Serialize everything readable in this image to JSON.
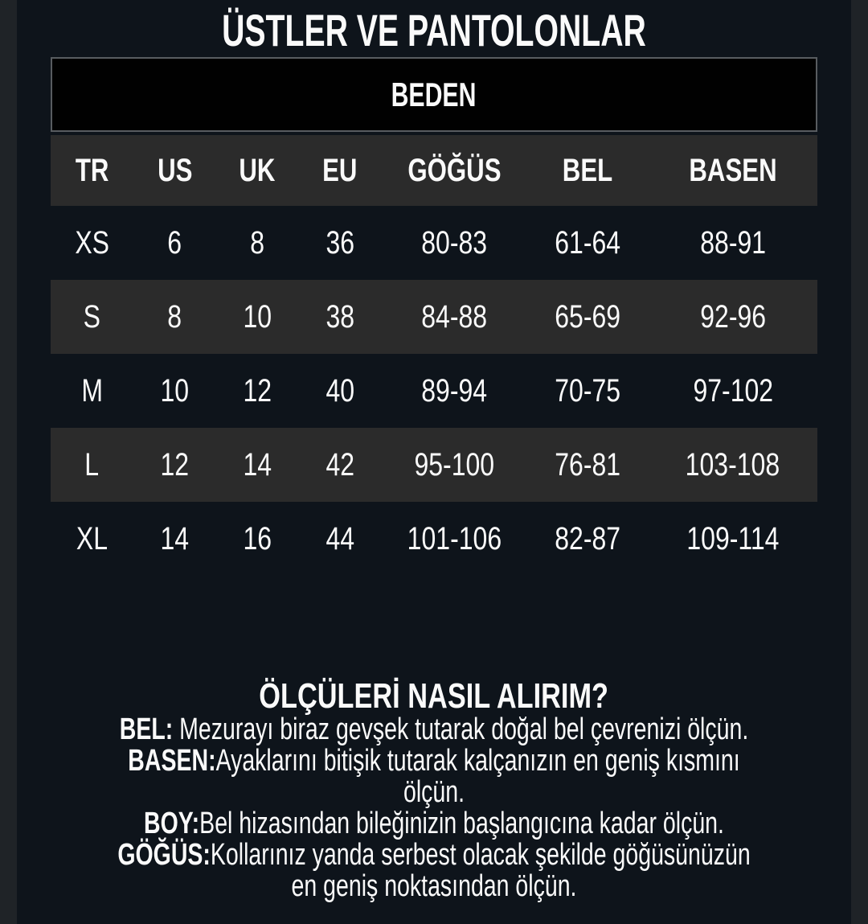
{
  "title": "ÜSTLER VE PANTOLONLAR",
  "table": {
    "caption": "BEDEN",
    "columns": [
      "TR",
      "US",
      "UK",
      "EU",
      "GÖĞÜS",
      "BEL",
      "BASEN"
    ],
    "rows": [
      [
        "XS",
        "6",
        "8",
        "36",
        "80-83",
        "61-64",
        "88-91"
      ],
      [
        "S",
        "8",
        "10",
        "38",
        "84-88",
        "65-69",
        "92-96"
      ],
      [
        "M",
        "10",
        "12",
        "40",
        "89-94",
        "70-75",
        "97-102"
      ],
      [
        "L",
        "12",
        "14",
        "42",
        "95-100",
        "76-81",
        "103-108"
      ],
      [
        "XL",
        "14",
        "16",
        "44",
        "101-106",
        "82-87",
        "109-114"
      ]
    ]
  },
  "instructions": {
    "heading": "ÖLÇÜLERİ NASIL ALIRIM?",
    "items": [
      {
        "label": "BEL:",
        "text": " Mezurayı biraz gevşek tutarak doğal bel çevrenizi ölçün."
      },
      {
        "label": "BASEN:",
        "text": "Ayaklarını bitişik tutarak kalçanızın en geniş kısmını\nölçün."
      },
      {
        "label": "BOY:",
        "text": "Bel hizasından bileğinizin başlangıcına kadar ölçün."
      },
      {
        "label": "GÖĞÜS:",
        "text": "Kollarınız yanda serbest olacak şekilde göğüsünüzün\nen geniş noktasından ölçün."
      }
    ]
  },
  "colors": {
    "background": "#0e141b",
    "edge_strip": "#1f2327",
    "row_stripe": "#2b2b2b",
    "caption_bg": "#010101",
    "caption_border": "#585c60",
    "text": "#fafafa"
  }
}
